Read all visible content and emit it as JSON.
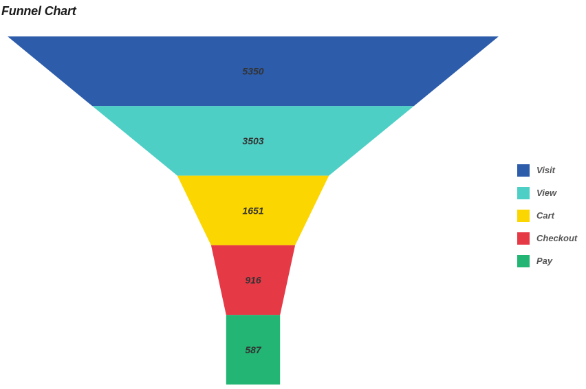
{
  "title": "Funnel Chart",
  "chart_data": {
    "type": "funnel",
    "title": "Funnel Chart",
    "categories": [
      "Visit",
      "View",
      "Cart",
      "Checkout",
      "Pay"
    ],
    "values": [
      5350,
      3503,
      1651,
      916,
      587
    ],
    "colors": [
      "#2c5caa",
      "#4ecfc5",
      "#fcd600",
      "#e63946",
      "#22b573"
    ],
    "legend_position": "right",
    "grid": false
  }
}
